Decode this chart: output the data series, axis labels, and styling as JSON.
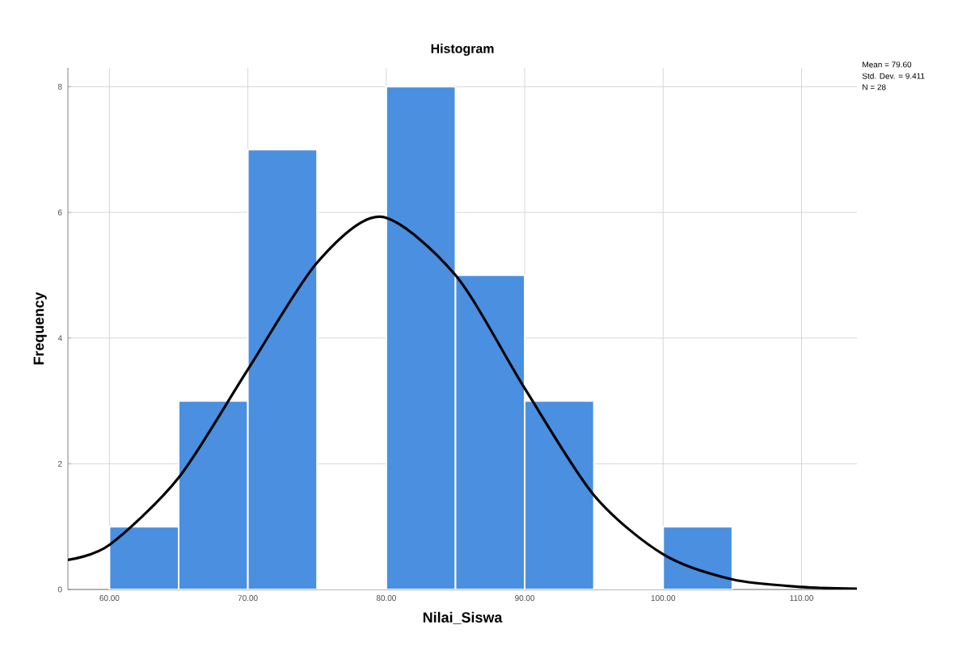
{
  "chart_data": {
    "type": "histogram",
    "title": "Histogram",
    "xlabel": "Nilai_Siswa",
    "ylabel": "Frequency",
    "bins": [
      60,
      65,
      70,
      75,
      80,
      85,
      90,
      95,
      100,
      105
    ],
    "values": [
      1,
      3,
      7,
      0,
      8,
      5,
      3,
      0,
      1
    ],
    "color": "#4a8fe0",
    "series": [
      {
        "type": "line",
        "color": "#000000",
        "x": [
          57,
          60,
          65,
          70,
          75,
          79.6,
          85,
          90,
          95,
          100,
          105,
          110,
          114
        ],
        "values": [
          0.47,
          0.71,
          1.78,
          3.5,
          5.2,
          5.93,
          5.0,
          3.2,
          1.5,
          0.56,
          0.16,
          0.04,
          0.01
        ]
      }
    ],
    "xlim": [
      57,
      114
    ],
    "ylim": [
      0,
      8.3
    ],
    "xticks": [
      {
        "value": 60,
        "label": "60.00"
      },
      {
        "value": 70,
        "label": "70.00"
      },
      {
        "value": 80,
        "label": "80.00"
      },
      {
        "value": 90,
        "label": "90.00"
      },
      {
        "value": 100,
        "label": "100.00"
      },
      {
        "value": 110,
        "label": "110.00"
      }
    ],
    "yticks": [
      0,
      2,
      4,
      6,
      8
    ],
    "grid": true,
    "annotations": [
      "Mean = 79.60",
      "Std. Dev. = 9.411",
      "N = 28"
    ]
  }
}
